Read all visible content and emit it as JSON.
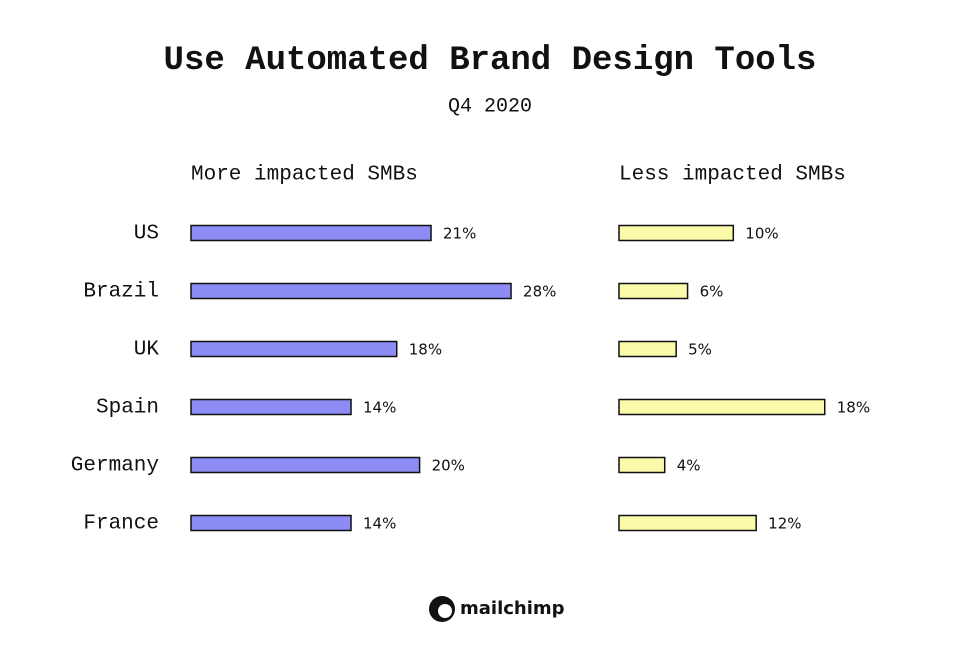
{
  "chart_data": {
    "type": "bar",
    "orientation": "horizontal",
    "title": "Use Automated Brand Design Tools",
    "subtitle": "Q4 2020",
    "categories": [
      "US",
      "Brazil",
      "UK",
      "Spain",
      "Germany",
      "France"
    ],
    "series": [
      {
        "name": "More impacted SMBs",
        "color": "#8c8cf4",
        "values": [
          21,
          28,
          18,
          14,
          20,
          14
        ],
        "value_labels": [
          "21%",
          "28%",
          "18%",
          "14%",
          "20%",
          "14%"
        ]
      },
      {
        "name": "Less impacted SMBs",
        "color": "#fafaaa",
        "values": [
          10,
          6,
          5,
          18,
          4,
          12
        ],
        "value_labels": [
          "10%",
          "6%",
          "5%",
          "18%",
          "4%",
          "12%"
        ]
      }
    ],
    "brand": "mailchimp"
  }
}
